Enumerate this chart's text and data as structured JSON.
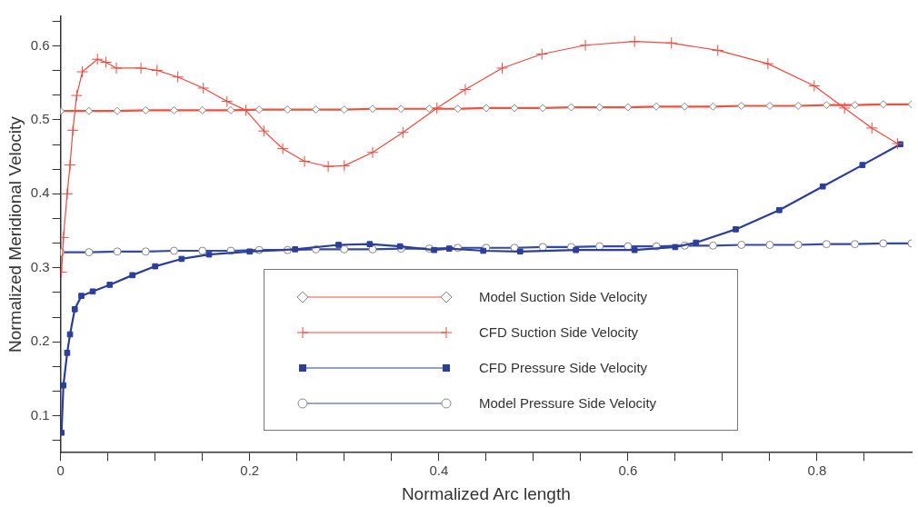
{
  "chart_data": {
    "type": "line",
    "xlabel": "Normalized Arc length",
    "ylabel": "Normalized Meridional Velocity",
    "xlim": [
      0,
      0.9
    ],
    "ylim": [
      0.05,
      0.64
    ],
    "xticks": [
      0,
      {
        "value": 0.05,
        "label": null
      },
      {
        "value": 0.1,
        "label": null
      },
      {
        "value": 0.15,
        "label": null
      },
      0.2,
      {
        "value": 0.25,
        "label": null
      },
      {
        "value": 0.3,
        "label": null
      },
      {
        "value": 0.35,
        "label": null
      },
      0.4,
      {
        "value": 0.45,
        "label": null
      },
      {
        "value": 0.5,
        "label": null
      },
      {
        "value": 0.55,
        "label": null
      },
      0.6,
      {
        "value": 0.65,
        "label": null
      },
      {
        "value": 0.7,
        "label": null
      },
      {
        "value": 0.75,
        "label": null
      },
      0.8,
      {
        "value": 0.85,
        "label": null
      }
    ],
    "yticks": [
      {
        "value": 0.0667,
        "label": null
      },
      0.1,
      {
        "value": 0.1333,
        "label": null
      },
      {
        "value": 0.1667,
        "label": null
      },
      0.2,
      {
        "value": 0.2333,
        "label": null
      },
      {
        "value": 0.2667,
        "label": null
      },
      0.3,
      {
        "value": 0.3333,
        "label": null
      },
      {
        "value": 0.3667,
        "label": null
      },
      0.4,
      {
        "value": 0.4333,
        "label": null
      },
      {
        "value": 0.4667,
        "label": null
      },
      0.5,
      {
        "value": 0.5333,
        "label": null
      },
      {
        "value": 0.5667,
        "label": null
      },
      0.6,
      {
        "value": 0.6333,
        "label": null
      }
    ],
    "grid": false,
    "legend": "bottom",
    "line_style": "solid",
    "series": [
      {
        "name": "Model Suction Side Velocity",
        "color": "#f0503c",
        "marker": "diamond",
        "x": [
          0,
          0.03,
          0.06,
          0.09,
          0.12,
          0.15,
          0.18,
          0.21,
          0.24,
          0.27,
          0.3,
          0.33,
          0.36,
          0.39,
          0.42,
          0.45,
          0.48,
          0.51,
          0.54,
          0.57,
          0.6,
          0.63,
          0.66,
          0.69,
          0.72,
          0.75,
          0.78,
          0.81,
          0.84,
          0.87,
          0.9
        ],
        "values": [
          0.512,
          0.512,
          0.512,
          0.513,
          0.513,
          0.513,
          0.513,
          0.514,
          0.514,
          0.514,
          0.514,
          0.515,
          0.515,
          0.515,
          0.515,
          0.516,
          0.516,
          0.516,
          0.517,
          0.517,
          0.517,
          0.518,
          0.518,
          0.518,
          0.519,
          0.519,
          0.519,
          0.52,
          0.52,
          0.521,
          0.521
        ]
      },
      {
        "name": "CFD Suction Side Velocity",
        "color": "#f04a40",
        "marker": "cross",
        "x": [
          0.001,
          0.003,
          0.007,
          0.01,
          0.013,
          0.017,
          0.023,
          0.039,
          0.048,
          0.059,
          0.085,
          0.102,
          0.124,
          0.151,
          0.176,
          0.196,
          0.215,
          0.235,
          0.258,
          0.283,
          0.3,
          0.33,
          0.362,
          0.398,
          0.428,
          0.467,
          0.509,
          0.555,
          0.607,
          0.646,
          0.695,
          0.748,
          0.797,
          0.829,
          0.858,
          0.885
        ],
        "values": [
          0.294,
          0.341,
          0.4,
          0.439,
          0.486,
          0.533,
          0.565,
          0.582,
          0.578,
          0.57,
          0.57,
          0.567,
          0.558,
          0.543,
          0.525,
          0.513,
          0.485,
          0.461,
          0.444,
          0.437,
          0.438,
          0.456,
          0.483,
          0.516,
          0.541,
          0.57,
          0.589,
          0.601,
          0.606,
          0.604,
          0.594,
          0.576,
          0.546,
          0.516,
          0.489,
          0.468
        ]
      },
      {
        "name": "CFD Pressure Side Velocity",
        "color": "#2b3f9a",
        "marker": "square",
        "x": [
          0.001,
          0.003,
          0.007,
          0.01,
          0.015,
          0.022,
          0.034,
          0.052,
          0.076,
          0.1,
          0.128,
          0.157,
          0.2,
          0.248,
          0.294,
          0.327,
          0.359,
          0.395,
          0.411,
          0.447,
          0.486,
          0.545,
          0.607,
          0.65,
          0.672,
          0.714,
          0.76,
          0.806,
          0.848,
          0.888
        ],
        "values": [
          0.077,
          0.141,
          0.185,
          0.21,
          0.244,
          0.262,
          0.268,
          0.277,
          0.29,
          0.302,
          0.312,
          0.318,
          0.322,
          0.325,
          0.331,
          0.332,
          0.329,
          0.324,
          0.326,
          0.323,
          0.322,
          0.324,
          0.324,
          0.328,
          0.334,
          0.352,
          0.378,
          0.41,
          0.439,
          0.467
        ]
      },
      {
        "name": "Model Pressure Side Velocity",
        "color": "#3448a8",
        "marker": "circle",
        "x": [
          0,
          0.03,
          0.06,
          0.09,
          0.12,
          0.15,
          0.18,
          0.21,
          0.24,
          0.27,
          0.3,
          0.33,
          0.36,
          0.39,
          0.42,
          0.45,
          0.48,
          0.51,
          0.54,
          0.57,
          0.6,
          0.63,
          0.66,
          0.69,
          0.72,
          0.75,
          0.78,
          0.81,
          0.84,
          0.87,
          0.9
        ],
        "values": [
          0.321,
          0.321,
          0.322,
          0.322,
          0.323,
          0.323,
          0.323,
          0.324,
          0.324,
          0.325,
          0.325,
          0.325,
          0.326,
          0.326,
          0.327,
          0.327,
          0.327,
          0.328,
          0.328,
          0.329,
          0.329,
          0.329,
          0.33,
          0.33,
          0.331,
          0.331,
          0.331,
          0.332,
          0.332,
          0.333,
          0.333
        ]
      }
    ]
  }
}
